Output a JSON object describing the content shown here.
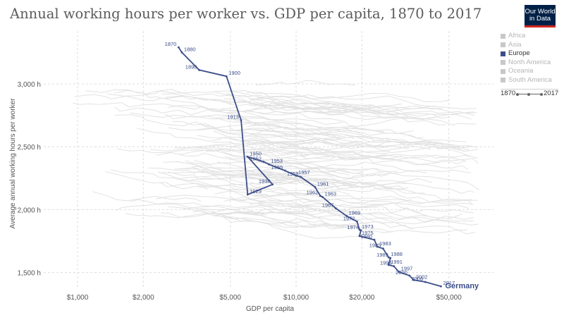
{
  "header": {
    "title": "Annual working hours per worker vs. GDP per capita, 1870 to 2017",
    "logo_line1": "Our World",
    "logo_line2": "in Data"
  },
  "legend": {
    "items": [
      {
        "label": "Africa",
        "color": "#c8c8c8",
        "active": false
      },
      {
        "label": "Asia",
        "color": "#c8c8c8",
        "active": false
      },
      {
        "label": "Europe",
        "color": "#3c4e8a",
        "active": true
      },
      {
        "label": "North America",
        "color": "#c8c8c8",
        "active": false
      },
      {
        "label": "Oceania",
        "color": "#c8c8c8",
        "active": false
      },
      {
        "label": "South America",
        "color": "#c8c8c8",
        "active": false
      }
    ],
    "timeline_start": "1870",
    "timeline_end": "2017"
  },
  "chart_data": {
    "type": "scatter",
    "title": "Annual working hours per worker vs. GDP per capita, 1870 to 2017",
    "xlabel": "GDP per capita",
    "ylabel": "Average annual working hours per worker",
    "x_scale": "log",
    "xlim": [
      700,
      80000
    ],
    "ylim": [
      1380,
      3420
    ],
    "x_ticks": [
      1000,
      2000,
      5000,
      10000,
      20000,
      50000
    ],
    "x_tick_labels": [
      "$1,000",
      "$2,000",
      "$5,000",
      "$10,000",
      "$20,000",
      "$50,000"
    ],
    "y_ticks": [
      1500,
      2000,
      2500,
      3000
    ],
    "y_tick_labels": [
      "1,500 h",
      "2,000 h",
      "2,500 h",
      "3,000 h"
    ],
    "grid": true,
    "highlight_color": "#3c4e8a",
    "background_color": "#e2e2e2",
    "series": [
      {
        "name": "Germany",
        "points": [
          {
            "year": 1870,
            "x": 2900,
            "y": 3290
          },
          {
            "year": 1880,
            "x": 3000,
            "y": 3250
          },
          {
            "year": 1890,
            "x": 3600,
            "y": 3110
          },
          {
            "year": 1900,
            "x": 4800,
            "y": 3060
          },
          {
            "year": 1913,
            "x": 5600,
            "y": 2710
          },
          {
            "year": 1929,
            "x": 6000,
            "y": 2120
          },
          {
            "year": 1938,
            "x": 7800,
            "y": 2200
          },
          {
            "year": 1950,
            "x": 6000,
            "y": 2420
          },
          {
            "year": 1952,
            "x": 7100,
            "y": 2380
          },
          {
            "year": 1953,
            "x": 7500,
            "y": 2360
          },
          {
            "year": 1955,
            "x": 8900,
            "y": 2310
          },
          {
            "year": 1957,
            "x": 10000,
            "y": 2270
          },
          {
            "year": 1958,
            "x": 10500,
            "y": 2260
          },
          {
            "year": 1961,
            "x": 12200,
            "y": 2180
          },
          {
            "year": 1962,
            "x": 12900,
            "y": 2110
          },
          {
            "year": 1963,
            "x": 13200,
            "y": 2100
          },
          {
            "year": 1967,
            "x": 15200,
            "y": 2010
          },
          {
            "year": 1969,
            "x": 17000,
            "y": 1950
          },
          {
            "year": 1972,
            "x": 19000,
            "y": 1905
          },
          {
            "year": 1973,
            "x": 19500,
            "y": 1840
          },
          {
            "year": 1974,
            "x": 19800,
            "y": 1835
          },
          {
            "year": 1975,
            "x": 19500,
            "y": 1790
          },
          {
            "year": 1980,
            "x": 22800,
            "y": 1760
          },
          {
            "year": 1983,
            "x": 23500,
            "y": 1705
          },
          {
            "year": 1985,
            "x": 25000,
            "y": 1690
          },
          {
            "year": 1988,
            "x": 26500,
            "y": 1620
          },
          {
            "year": 1989,
            "x": 27000,
            "y": 1615
          },
          {
            "year": 1991,
            "x": 26500,
            "y": 1560
          },
          {
            "year": 1994,
            "x": 28000,
            "y": 1550
          },
          {
            "year": 1997,
            "x": 29500,
            "y": 1505
          },
          {
            "year": 2000,
            "x": 33000,
            "y": 1475
          },
          {
            "year": 2002,
            "x": 34500,
            "y": 1440
          },
          {
            "year": 2006,
            "x": 39000,
            "y": 1425
          },
          {
            "year": 2017,
            "x": 46000,
            "y": 1390
          }
        ]
      }
    ]
  }
}
